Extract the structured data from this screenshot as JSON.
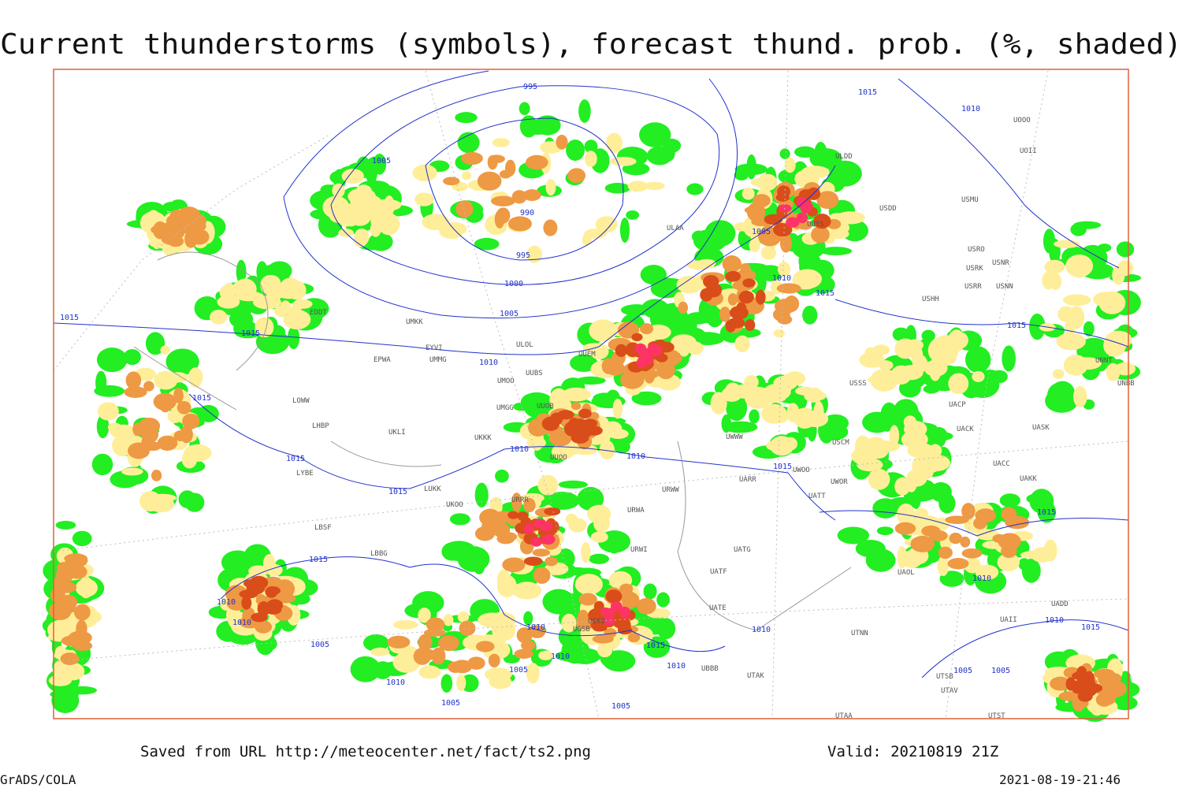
{
  "header": {
    "title": "Current thunderstorms (symbols), forecast thund. prob. (%, shaded)"
  },
  "footer": {
    "source": "Saved from URL http://meteocenter.net/fact/ts2.png",
    "valid": "Valid: 20210819 21Z",
    "software": "GrADS/COLA",
    "timestamp": "2021-08-19-21:46"
  },
  "stations": [
    "ULDD",
    "USDD",
    "USMU",
    "UOOO",
    "UOII",
    "USRO",
    "USRK",
    "USNR",
    "USRR",
    "USNN",
    "USHH",
    "UUYS",
    "ULAA",
    "UMKK",
    "EYVI",
    "EPWA",
    "UMMG",
    "UMOO",
    "UUBS",
    "UUEM",
    "ULOL",
    "UMGG",
    "UUOB",
    "UKLI",
    "UKKK",
    "UUOO",
    "UKOO",
    "LUKK",
    "URRR",
    "LBBG",
    "LYBE",
    "LBSF",
    "LHBP",
    "LOWW",
    "EDDT",
    "USSS",
    "UACP",
    "UACK",
    "UASK",
    "UNNT",
    "UNBB",
    "USCM",
    "UWOO",
    "UWOR",
    "UATT",
    "UACC",
    "UAKK",
    "UAOL",
    "UARR",
    "URWA",
    "URWI",
    "URWW",
    "UWWW",
    "UATG",
    "UATE",
    "UATF",
    "UGSB",
    "UGKO",
    "UBBB",
    "UTAK",
    "UTNN",
    "UTAA",
    "UTSB",
    "UTAV",
    "UTST",
    "UAII",
    "UADD"
  ],
  "isobars": [
    995,
    1005,
    990,
    995,
    1000,
    1005,
    1005,
    1010,
    1015,
    1015,
    1010,
    1015,
    1015,
    1015,
    1010,
    1010,
    1010,
    1015,
    1015,
    1015,
    1015,
    1010,
    1010,
    1005,
    1010,
    1005,
    1005,
    1010,
    1010,
    1015,
    1010,
    1005,
    1010,
    1015,
    1015,
    1010,
    1010,
    1015,
    1005,
    1005
  ]
}
